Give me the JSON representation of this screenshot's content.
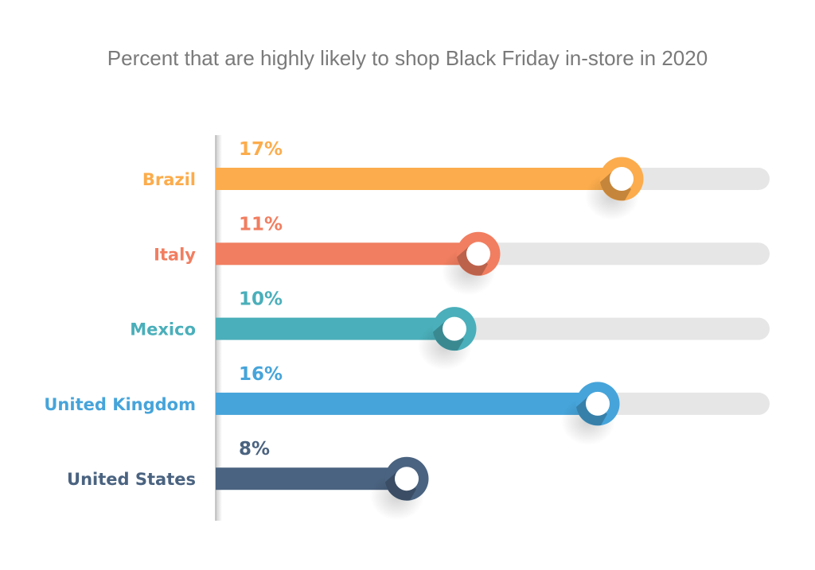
{
  "chart_data": {
    "type": "bar",
    "orientation": "horizontal",
    "title": "Percent that are highly likely to shop Black Friday in-store in 2020",
    "categories": [
      "Brazil",
      "Italy",
      "Mexico",
      "United Kingdom",
      "United States"
    ],
    "values": [
      17,
      11,
      10,
      16,
      8
    ],
    "value_labels": [
      "17%",
      "11%",
      "10%",
      "16%",
      "8%"
    ],
    "unit": "%",
    "colors": [
      "#FCAC4C",
      "#F17E60",
      "#4AAFBA",
      "#46A4DA",
      "#4A6380"
    ],
    "track_color": "#E6E6E6",
    "grid": false,
    "legend": "none"
  }
}
